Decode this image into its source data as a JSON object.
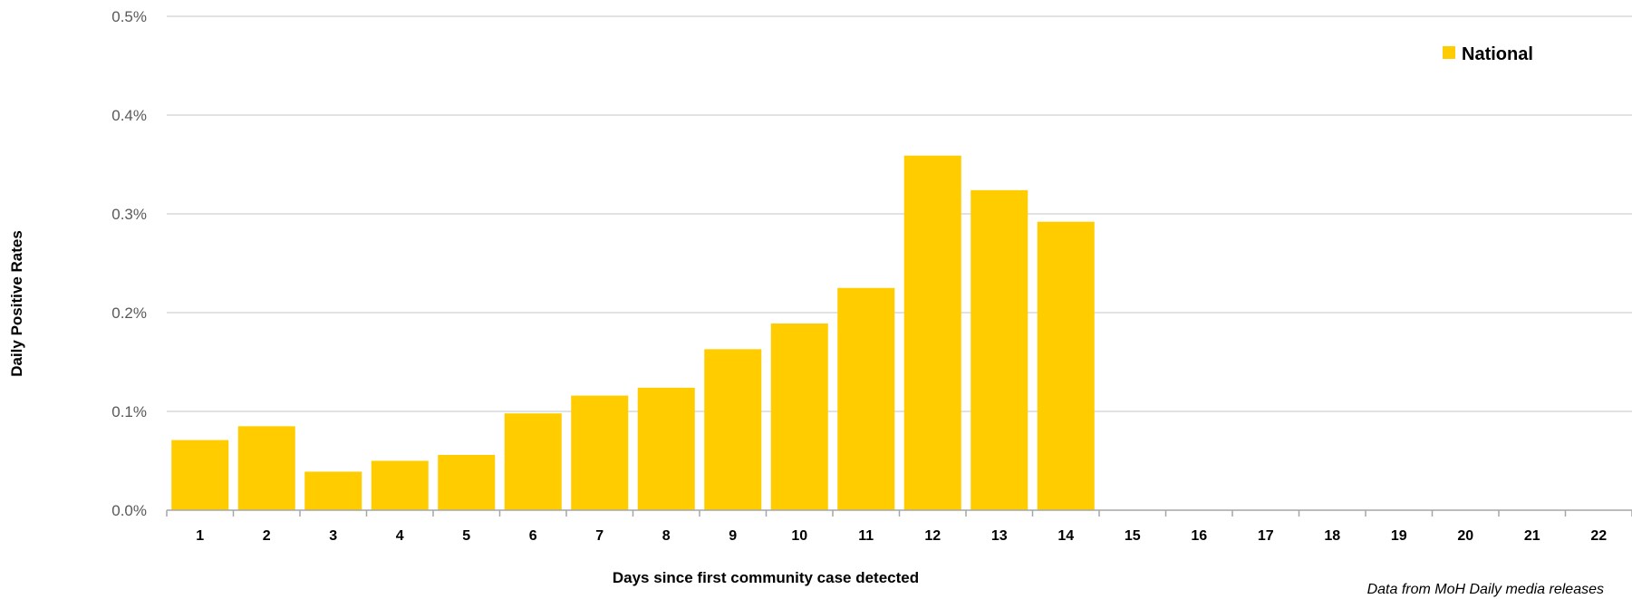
{
  "chart_data": {
    "type": "bar",
    "title": "",
    "xlabel": "Days since first community case detected",
    "ylabel": "Daily Positive Rates",
    "categories": [
      "1",
      "2",
      "3",
      "4",
      "5",
      "6",
      "7",
      "8",
      "9",
      "10",
      "11",
      "12",
      "13",
      "14",
      "15",
      "16",
      "17",
      "18",
      "19",
      "20",
      "21",
      "22"
    ],
    "series": [
      {
        "name": "National",
        "color": "#FFCC00",
        "values": [
          0.071,
          0.085,
          0.039,
          0.05,
          0.056,
          0.098,
          0.116,
          0.124,
          0.163,
          0.189,
          0.225,
          0.359,
          0.324,
          0.292,
          null,
          null,
          null,
          null,
          null,
          null,
          null,
          null
        ]
      }
    ],
    "ylim": [
      0,
      0.5
    ],
    "yticks": [
      "0.0%",
      "0.1%",
      "0.2%",
      "0.3%",
      "0.4%",
      "0.5%"
    ],
    "ytick_values": [
      0,
      0.1,
      0.2,
      0.3,
      0.4,
      0.5
    ],
    "grid": true,
    "legend_position": "top-right",
    "note": "Data from MoH Daily media releases",
    "gridline_color": "#D9D9D9",
    "axis_color": "#A6A6A6"
  }
}
